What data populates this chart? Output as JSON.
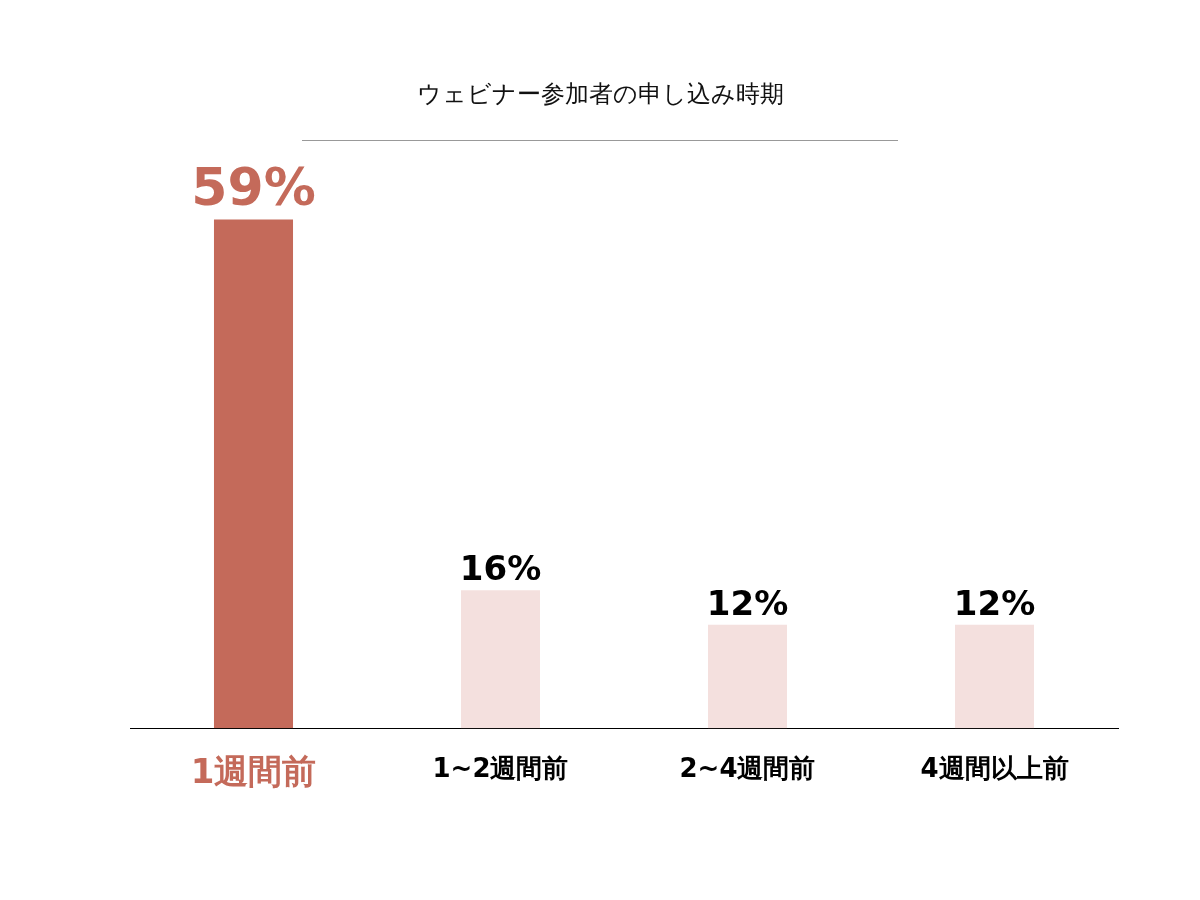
{
  "chart_data": {
    "type": "bar",
    "title": "ウェビナー参加者の申し込み時期",
    "categories": [
      "1週間前",
      "1~2週間前",
      "2~4週間前",
      "4週間以上前"
    ],
    "values": [
      59,
      16,
      12,
      12
    ],
    "colors": [
      "#c46a5a",
      "#f4e0de",
      "#f4e0de",
      "#f4e0de"
    ],
    "value_labels": [
      "59%",
      "16%",
      "12%",
      "12%"
    ],
    "grid": false,
    "legend": false
  }
}
